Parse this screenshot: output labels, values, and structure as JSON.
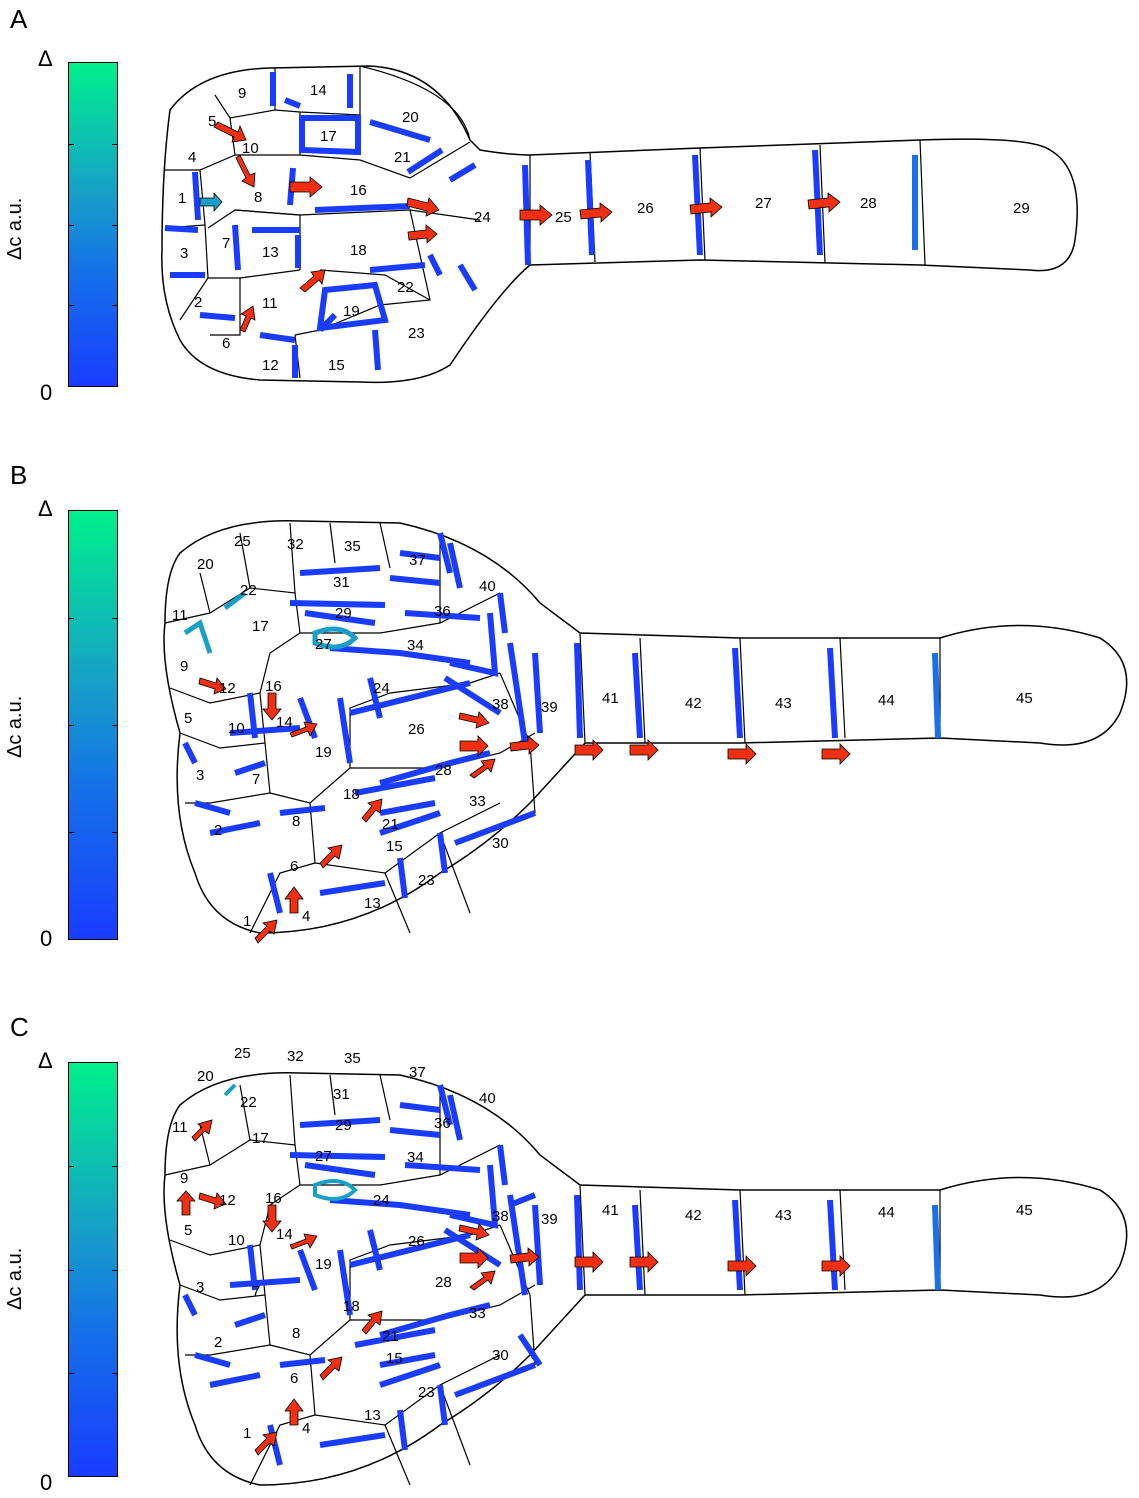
{
  "colorbar": {
    "top_label": "Δ",
    "bottom_label": "0",
    "axis_label": "Δc a.u.",
    "color_low": "#1a3cff",
    "color_high": "#00f08c"
  },
  "colors": {
    "wall_high": "#1a3cff",
    "arrow_fill": "#f03010",
    "cell_outline": "#000000"
  },
  "panels": [
    {
      "letter": "A",
      "cells": [
        "1",
        "2",
        "3",
        "4",
        "5",
        "6",
        "7",
        "8",
        "9",
        "10",
        "11",
        "12",
        "13",
        "14",
        "15",
        "16",
        "17",
        "18",
        "19",
        "20",
        "21",
        "22",
        "23",
        "24",
        "25",
        "26",
        "27",
        "28",
        "29"
      ]
    },
    {
      "letter": "B",
      "cells": [
        "1",
        "2",
        "3",
        "4",
        "5",
        "6",
        "7",
        "8",
        "9",
        "10",
        "11",
        "12",
        "13",
        "14",
        "15",
        "16",
        "17",
        "18",
        "19",
        "20",
        "21",
        "22",
        "23",
        "24",
        "25",
        "26",
        "27",
        "28",
        "29",
        "30",
        "31",
        "32",
        "33",
        "34",
        "35",
        "36",
        "37",
        "38",
        "39",
        "40",
        "41",
        "42",
        "43",
        "44",
        "45"
      ]
    },
    {
      "letter": "C",
      "cells": [
        "1",
        "2",
        "3",
        "4",
        "5",
        "6",
        "7",
        "8",
        "9",
        "10",
        "11",
        "12",
        "13",
        "14",
        "15",
        "16",
        "17",
        "18",
        "19",
        "20",
        "21",
        "22",
        "23",
        "24",
        "25",
        "26",
        "27",
        "28",
        "29",
        "30",
        "31",
        "32",
        "33",
        "34",
        "35",
        "36",
        "37",
        "38",
        "39",
        "40",
        "41",
        "42",
        "43",
        "44",
        "45"
      ]
    }
  ]
}
